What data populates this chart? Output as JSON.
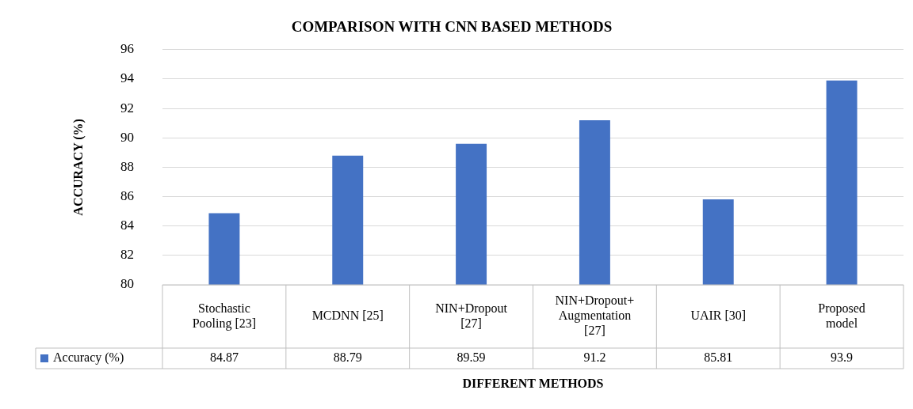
{
  "chart_data": {
    "type": "bar",
    "title": "COMPARISON WITH CNN BASED METHODS",
    "xlabel": "DIFFERENT METHODS",
    "ylabel": "ACCURACY (%)",
    "categories": [
      "Stochastic Pooling [23]",
      "MCDNN [25]",
      "NIN+Dropout [27]",
      "NIN+Dropout+Augmentation [27]",
      "UAIR [30]",
      "Proposed model"
    ],
    "series": [
      {
        "name": "Accuracy (%)",
        "color": "#4472c4",
        "values": [
          84.87,
          88.79,
          89.59,
          91.2,
          85.81,
          93.9
        ]
      }
    ],
    "ylim": [
      80,
      96
    ],
    "yticks": [
      80,
      82,
      84,
      86,
      88,
      90,
      92,
      94,
      96
    ],
    "grid": "y",
    "legend": "bottom",
    "data_labels": true
  }
}
